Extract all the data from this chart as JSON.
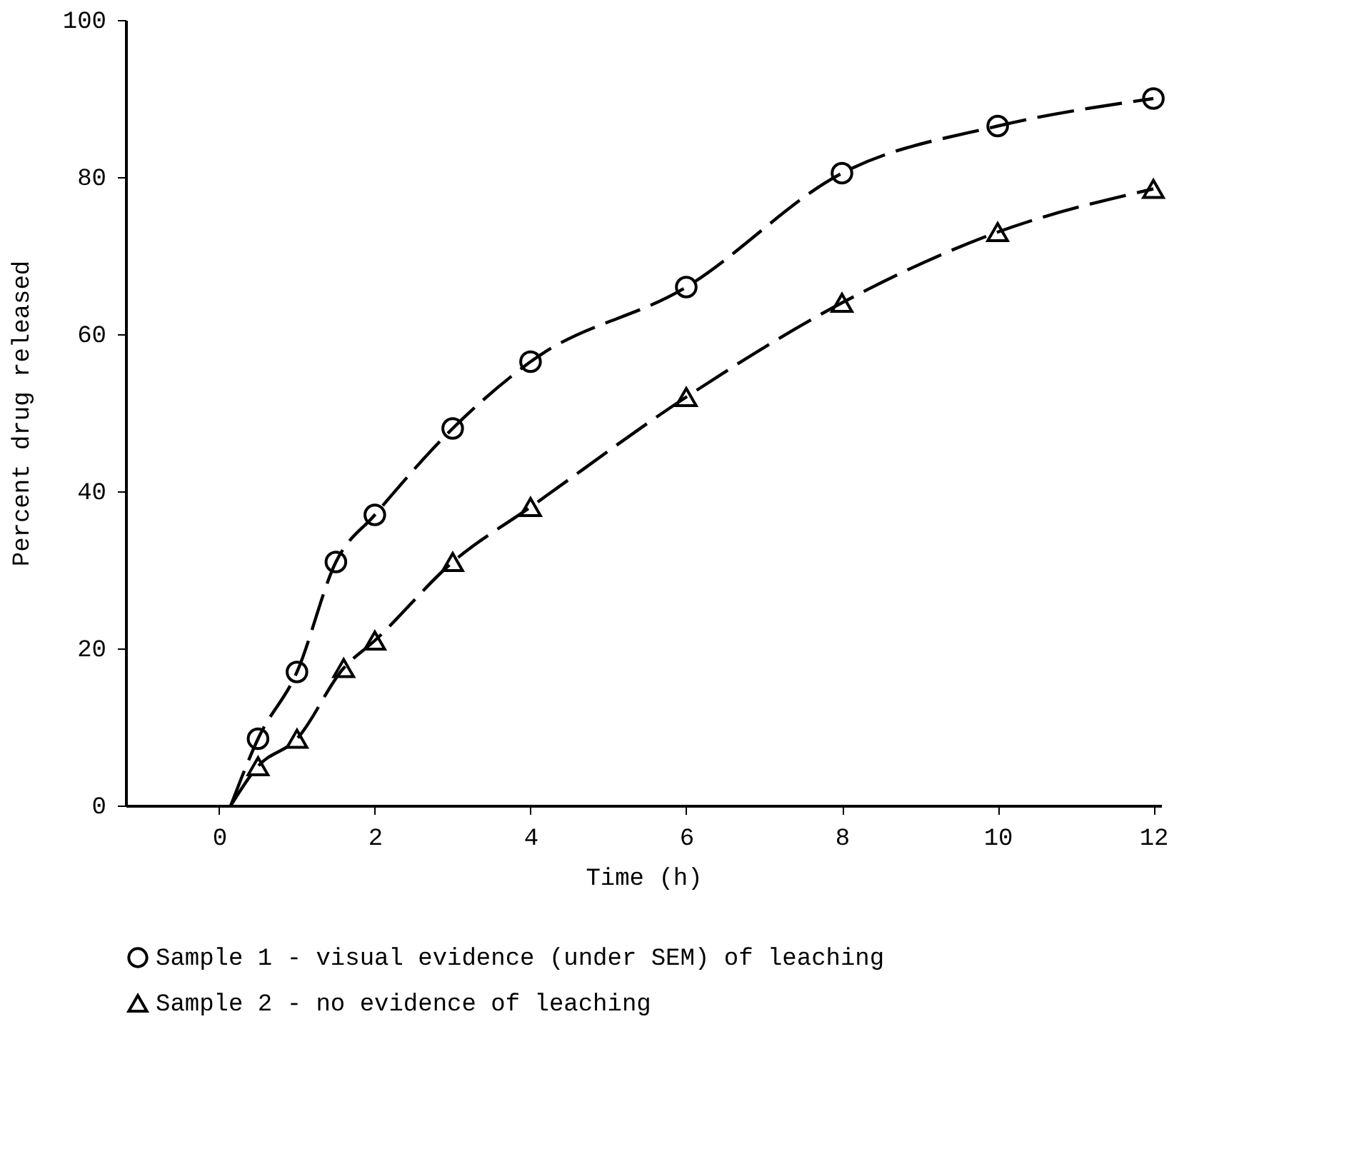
{
  "chart_data": {
    "type": "scatter",
    "xlabel": "Time (h)",
    "ylabel": "Percent drug released",
    "xlim": [
      -1.2,
      12.1
    ],
    "ylim": [
      0,
      100
    ],
    "xticks": [
      0,
      2,
      4,
      6,
      8,
      10,
      12
    ],
    "yticks": [
      0,
      20,
      40,
      60,
      80,
      100
    ],
    "grid": false,
    "legend": "bottom",
    "series": [
      {
        "name": "Sample 1 - visual evidence (under SEM) of leaching",
        "marker": "circle",
        "color": "#000000",
        "x": [
          0.5,
          1,
          1.5,
          2,
          3,
          4,
          6,
          8,
          10,
          12
        ],
        "values": [
          8.5,
          17,
          31,
          37,
          48,
          56.5,
          66,
          80.5,
          86.5,
          90
        ]
      },
      {
        "name": "Sample 2 - no evidence of leaching",
        "marker": "triangle",
        "color": "#000000",
        "x": [
          0.5,
          1,
          1.6,
          2,
          3,
          4,
          6,
          8,
          10,
          12
        ],
        "values": [
          5,
          8.5,
          17.5,
          21,
          31,
          38,
          52,
          64,
          73,
          78.5
        ]
      },
      {
        "type": "line",
        "line_style": "dashed",
        "marker": "none",
        "color": "#000000",
        "x": [
          0.15,
          0.5,
          1,
          1.5,
          2,
          3,
          4,
          6,
          8,
          10,
          12
        ],
        "values": [
          0,
          8.5,
          17,
          31,
          37,
          48,
          56.5,
          66,
          80.5,
          86.5,
          90
        ]
      },
      {
        "type": "line",
        "line_style": "dashed",
        "marker": "none",
        "color": "#000000",
        "x": [
          0.15,
          0.5,
          1,
          1.6,
          2,
          3,
          4,
          6,
          8,
          10,
          12
        ],
        "values": [
          0,
          5,
          8.5,
          17.5,
          21,
          31,
          38,
          52,
          64,
          73,
          78.5
        ]
      }
    ]
  }
}
